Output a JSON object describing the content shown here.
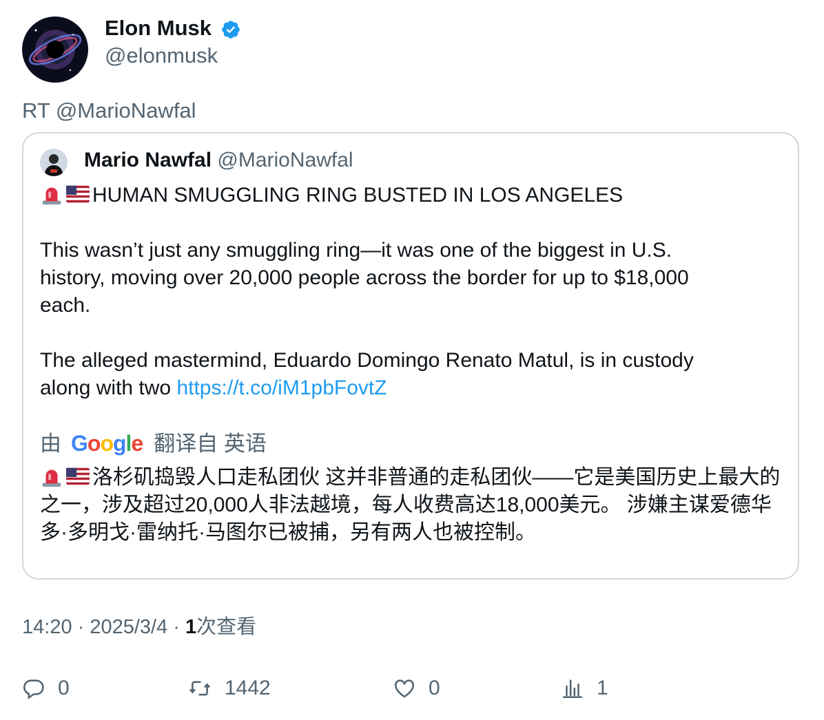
{
  "author": {
    "name": "Elon Musk",
    "handle": "@elonmusk",
    "avatar": "black-hole-avatar",
    "verified_icon": "verified-badge-icon"
  },
  "retweet_label": "RT @MarioNawfal",
  "quoted": {
    "name": "Mario Nawfal",
    "handle": "@MarioNawfal",
    "headline": "HUMAN SMUGGLING RING BUSTED IN LOS ANGELES",
    "para1_line1": "This wasn’t just any smuggling ring—it was one of the biggest in U.S.",
    "para1_line2": "history, moving over 20,000 people across the border for up to $18,000",
    "para1_line3": "each.",
    "para2_line1": "The alleged mastermind, Eduardo Domingo Renato Matul, is in custody",
    "para2_line2_text": "along with two ",
    "link": "https://t.co/iM1pbFovtZ",
    "translate_prefix": "由",
    "translate_brand": "Google",
    "translate_suffix": "翻译自 英语",
    "translation": "洛杉矶捣毁人口走私团伙 这并非普通的走私团伙——它是美国历史上最大的之一，涉及超过20,000人非法越境，每人收费高达18,000美元。 涉嫌主谋爱德华多·多明戈·雷纳托·马图尔已被捕，另有两人也被控制。"
  },
  "meta": {
    "time": "14:20",
    "sep1": " · ",
    "date": "2025/3/4",
    "sep2": " · ",
    "views_count": "1",
    "views_label": "次查看"
  },
  "actions": {
    "replies": "0",
    "retweets": "1442",
    "likes": "0",
    "views": "1"
  },
  "colors": {
    "accent": "#1d9bf0",
    "secondary": "#536471"
  }
}
